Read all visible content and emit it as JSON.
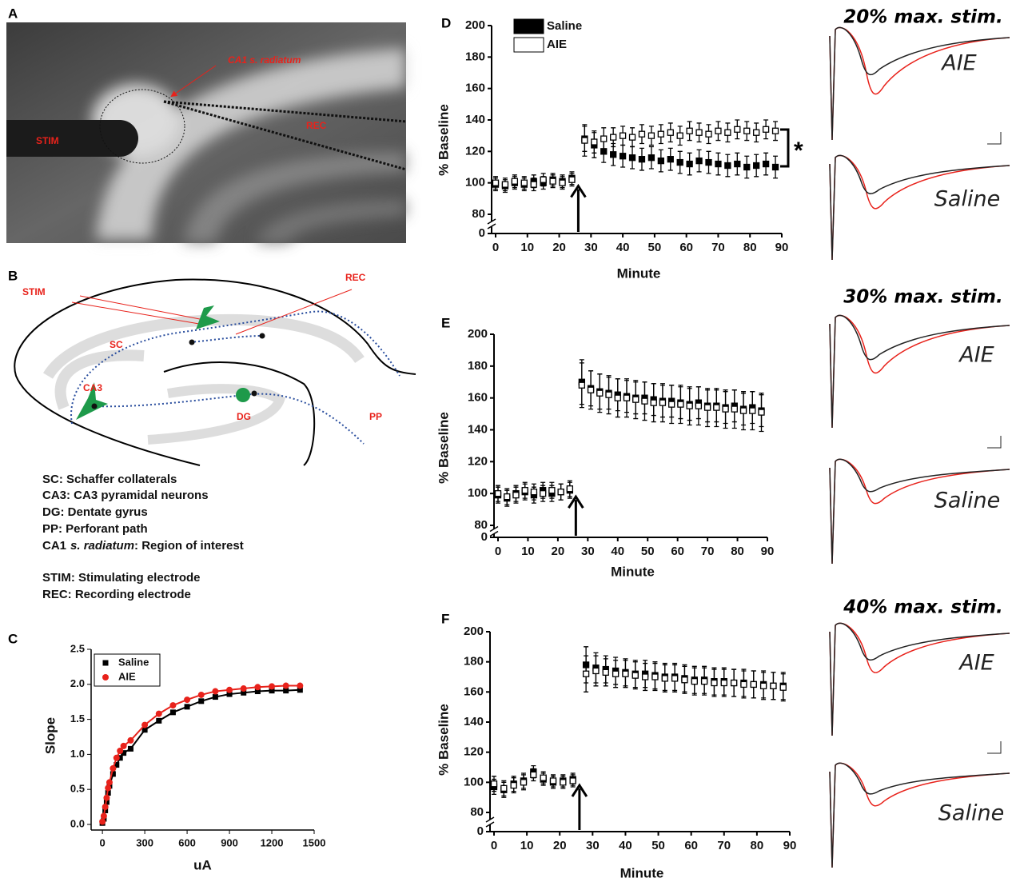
{
  "panel_a": {
    "label": "A",
    "ca1": "CA1 s. radiatum",
    "stim": "STIM",
    "rec": "REC"
  },
  "panel_b": {
    "label": "B",
    "stim": "STIM",
    "rec": "REC",
    "sc": "SC",
    "ca3": "CA3",
    "dg": "DG",
    "pp": "PP",
    "legend": [
      "SC: Schaffer collaterals",
      "CA3: CA3 pyramidal neurons",
      "DG: Dentate gyrus",
      "PP: Perforant path"
    ],
    "legend_ca1": [
      "CA1",
      "s. radiatum",
      ": Region of interest"
    ],
    "legend_electrodes": [
      "STIM: Stimulating electrode",
      "REC: Recording electrode"
    ]
  },
  "traces": [
    {
      "title": "20% max. stim.",
      "labels": [
        "AIE",
        "Saline"
      ]
    },
    {
      "title": "30% max. stim.",
      "labels": [
        "AIE",
        "Saline"
      ]
    },
    {
      "title": "40% max. stim.",
      "labels": [
        "AIE",
        "Saline"
      ]
    }
  ],
  "chart_data": [
    {
      "type": "scatter",
      "label": "C",
      "x_label": "uA",
      "y_label": "Slope",
      "fit": true,
      "x": [
        0,
        10,
        20,
        30,
        40,
        50,
        75,
        100,
        125,
        150,
        200,
        300,
        400,
        500,
        600,
        700,
        800,
        900,
        1000,
        1100,
        1200,
        1300,
        1400
      ],
      "series": [
        {
          "name": "Saline",
          "color": "#000000",
          "marker": "square",
          "values": [
            0.02,
            0.08,
            0.2,
            0.32,
            0.45,
            0.55,
            0.72,
            0.85,
            0.95,
            1.02,
            1.08,
            1.35,
            1.48,
            1.6,
            1.68,
            1.76,
            1.82,
            1.86,
            1.88,
            1.9,
            1.91,
            1.91,
            1.92
          ]
        },
        {
          "name": "AIE",
          "color": "#e8221b",
          "marker": "circle",
          "values": [
            0.04,
            0.12,
            0.25,
            0.38,
            0.52,
            0.6,
            0.8,
            0.95,
            1.05,
            1.12,
            1.2,
            1.42,
            1.58,
            1.7,
            1.78,
            1.85,
            1.9,
            1.92,
            1.94,
            1.96,
            1.97,
            1.98,
            1.98
          ]
        }
      ],
      "xlim": [
        -80,
        1500
      ],
      "xticks": [
        0,
        300,
        600,
        900,
        1200,
        1500
      ],
      "ylim": [
        -0.08,
        2.5
      ],
      "yticks": [
        {
          "value": 0,
          "label": "0.0"
        },
        0.5,
        {
          "value": 1,
          "label": "1.0"
        },
        1.5,
        {
          "value": 2,
          "label": "2.0"
        },
        2.5
      ]
    },
    {
      "type": "errorbar",
      "label": "D",
      "x_label": "Minute",
      "y_label": "% Baseline",
      "annotation": "*",
      "arrow_x": 26,
      "x": [
        0,
        3,
        6,
        9,
        12,
        15,
        18,
        21,
        24,
        28,
        31,
        34,
        37,
        40,
        43,
        46,
        49,
        52,
        55,
        58,
        61,
        64,
        67,
        70,
        73,
        76,
        79,
        82,
        85,
        88
      ],
      "series": [
        {
          "name": "Saline",
          "fill": "#000000",
          "values": [
            99,
            98,
            100,
            99,
            101,
            100,
            102,
            101,
            103,
            128,
            124,
            120,
            118,
            117,
            116,
            115,
            116,
            114,
            115,
            113,
            112,
            114,
            113,
            112,
            111,
            112,
            110,
            111,
            112,
            110
          ],
          "errors": [
            4,
            4,
            4,
            4,
            4,
            4,
            4,
            4,
            4,
            8,
            8,
            7,
            7,
            7,
            7,
            7,
            7,
            7,
            7,
            7,
            7,
            7,
            7,
            7,
            7,
            7,
            7,
            7,
            7,
            7
          ]
        },
        {
          "name": "AIE",
          "fill": "#ffffff",
          "values": [
            100,
            99,
            101,
            100,
            99,
            102,
            101,
            100,
            102,
            127,
            126,
            128,
            129,
            130,
            129,
            131,
            130,
            131,
            132,
            130,
            133,
            132,
            131,
            133,
            132,
            134,
            133,
            132,
            134,
            133
          ],
          "errors": [
            4,
            4,
            4,
            4,
            4,
            4,
            4,
            4,
            4,
            10,
            7,
            7,
            6,
            6,
            6,
            6,
            6,
            6,
            6,
            6,
            6,
            6,
            6,
            6,
            6,
            6,
            6,
            6,
            6,
            6
          ]
        }
      ],
      "xlim": [
        0,
        90
      ],
      "xticks": [
        0,
        10,
        20,
        30,
        40,
        50,
        60,
        70,
        80,
        90
      ],
      "ylim": [
        0,
        200
      ],
      "yticks": [
        0,
        80,
        100,
        120,
        140,
        160,
        180,
        200
      ]
    },
    {
      "type": "errorbar",
      "label": "E",
      "x_label": "Minute",
      "y_label": "% Baseline",
      "arrow_x": 26,
      "x": [
        0,
        3,
        6,
        9,
        12,
        15,
        18,
        21,
        24,
        28,
        31,
        34,
        37,
        40,
        43,
        46,
        49,
        52,
        55,
        58,
        61,
        64,
        67,
        70,
        73,
        76,
        79,
        82,
        85,
        88
      ],
      "series": [
        {
          "fill": "#000000",
          "values": [
            99,
            97,
            100,
            101,
            99,
            102,
            100,
            101,
            102,
            170,
            166,
            164,
            163,
            162,
            161,
            160,
            160,
            159,
            158,
            158,
            157,
            156,
            157,
            155,
            155,
            154,
            155,
            153,
            154,
            152
          ],
          "errors": [
            5,
            5,
            5,
            5,
            5,
            5,
            5,
            5,
            5,
            14,
            11,
            11,
            10,
            10,
            10,
            10,
            10,
            10,
            10,
            10,
            10,
            10,
            10,
            10,
            10,
            10,
            10,
            10,
            10,
            10
          ]
        },
        {
          "fill": "#ffffff",
          "values": [
            100,
            98,
            99,
            102,
            101,
            100,
            102,
            101,
            103,
            168,
            165,
            163,
            162,
            160,
            160,
            159,
            158,
            157,
            157,
            156,
            156,
            155,
            155,
            154,
            154,
            153,
            153,
            152,
            152,
            151
          ],
          "errors": [
            5,
            5,
            5,
            5,
            5,
            5,
            5,
            5,
            5,
            14,
            12,
            12,
            12,
            12,
            12,
            12,
            12,
            12,
            12,
            12,
            12,
            12,
            12,
            12,
            12,
            12,
            12,
            12,
            12,
            12
          ]
        }
      ],
      "xlim": [
        0,
        90
      ],
      "xticks": [
        0,
        10,
        20,
        30,
        40,
        50,
        60,
        70,
        80,
        90
      ],
      "ylim": [
        0,
        200
      ],
      "yticks": [
        0,
        80,
        100,
        120,
        140,
        160,
        180,
        200
      ]
    },
    {
      "type": "errorbar",
      "label": "F",
      "x_label": "Minute",
      "y_label": "% Baseline",
      "arrow_x": 26,
      "x": [
        0,
        3,
        6,
        9,
        12,
        15,
        18,
        21,
        24,
        28,
        31,
        34,
        37,
        40,
        43,
        46,
        49,
        52,
        55,
        58,
        61,
        64,
        67,
        70,
        73,
        76,
        79,
        82,
        85,
        88
      ],
      "series": [
        {
          "fill": "#000000",
          "values": [
            97,
            95,
            99,
            101,
            107,
            102,
            100,
            101,
            102,
            178,
            176,
            175,
            174,
            173,
            172,
            172,
            171,
            170,
            170,
            169,
            168,
            168,
            167,
            167,
            166,
            166,
            165,
            165,
            164,
            164
          ],
          "errors": [
            5,
            5,
            5,
            5,
            4,
            4,
            4,
            4,
            4,
            12,
            10,
            9,
            9,
            9,
            9,
            9,
            9,
            9,
            9,
            9,
            9,
            9,
            9,
            9,
            9,
            9,
            9,
            9,
            9,
            9
          ]
        },
        {
          "fill": "#ffffff",
          "values": [
            99,
            96,
            98,
            100,
            105,
            103,
            101,
            100,
            101,
            172,
            174,
            173,
            172,
            172,
            171,
            170,
            170,
            169,
            169,
            168,
            167,
            167,
            166,
            166,
            166,
            165,
            165,
            164,
            164,
            163
          ],
          "errors": [
            5,
            5,
            5,
            5,
            4,
            4,
            4,
            4,
            4,
            12,
            10,
            9,
            9,
            9,
            9,
            9,
            9,
            9,
            9,
            9,
            9,
            9,
            9,
            9,
            9,
            9,
            9,
            9,
            9,
            9
          ]
        }
      ],
      "xlim": [
        0,
        90
      ],
      "xticks": [
        0,
        10,
        20,
        30,
        40,
        50,
        60,
        70,
        80,
        90
      ],
      "ylim": [
        0,
        200
      ],
      "yticks": [
        0,
        80,
        100,
        120,
        140,
        160,
        180,
        200
      ]
    }
  ]
}
